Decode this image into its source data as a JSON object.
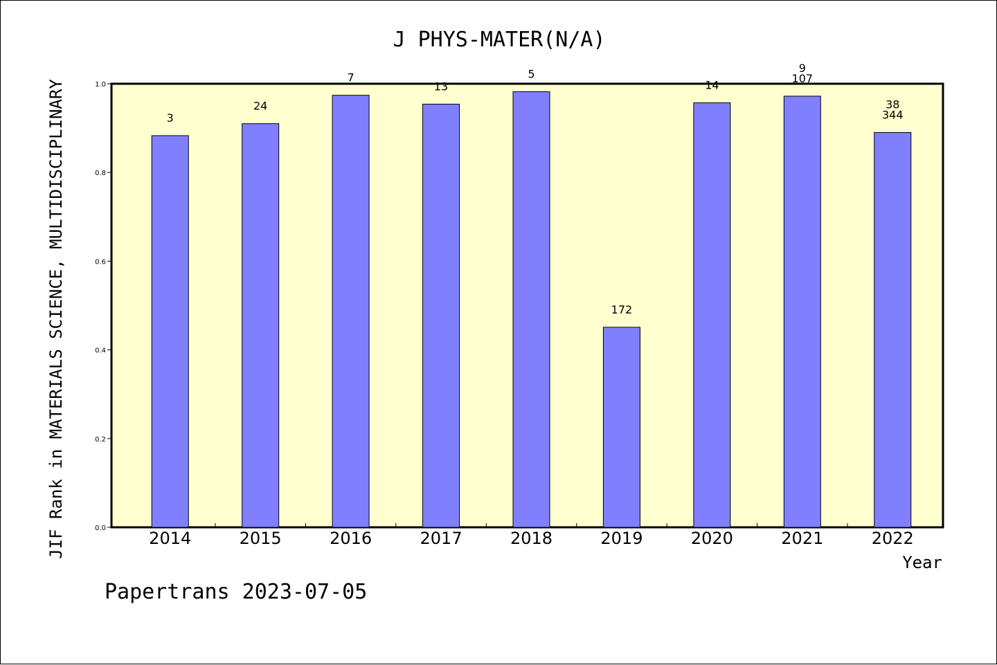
{
  "chart_data": {
    "type": "bar",
    "title": "J PHYS-MATER(N/A)",
    "xlabel": "Year",
    "ylabel": "JIF Rank in MATERIALS SCIENCE, MULTIDISCIPLINARY",
    "ylim": [
      0,
      1.0
    ],
    "yticks": [
      "0.0",
      "0.2",
      "0.4",
      "0.6",
      "0.8",
      "1.0"
    ],
    "categories": [
      "2014",
      "2015",
      "2016",
      "2017",
      "2018",
      "2019",
      "2020",
      "2021",
      "2022"
    ],
    "values": [
      0.883,
      0.91,
      0.974,
      0.954,
      0.982,
      0.451,
      0.957,
      0.972,
      0.89
    ],
    "labels": [
      [
        "3"
      ],
      [
        "24"
      ],
      [
        "7"
      ],
      [
        "13"
      ],
      [
        "5"
      ],
      [
        "172"
      ],
      [
        "14"
      ],
      [
        "9",
        "107"
      ],
      [
        "38",
        "344"
      ]
    ],
    "grid": false,
    "colors": {
      "plot_background": "#ffffd0",
      "bar_fill": "#8080ff",
      "bar_stroke": "#000000"
    }
  },
  "footer": "Papertrans 2023-07-05"
}
